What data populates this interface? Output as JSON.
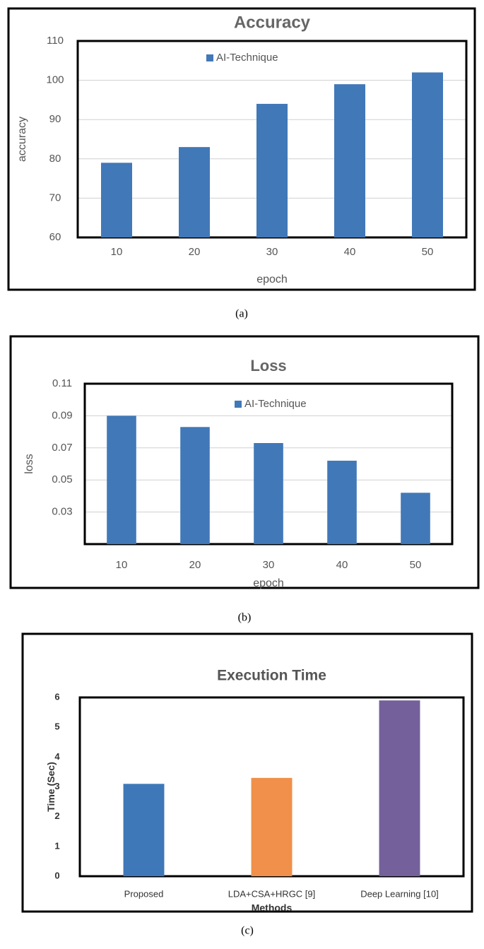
{
  "chart_data": [
    {
      "type": "bar",
      "title": "Accuracy",
      "caption": "(a)",
      "x_label": "epoch",
      "y_label": "accuracy",
      "categories": [
        "10",
        "20",
        "30",
        "40",
        "50"
      ],
      "series": [
        {
          "name": "AI-Technique",
          "color": "#4178b8",
          "values": [
            79,
            83,
            94,
            99,
            102
          ]
        }
      ],
      "ylim": [
        60,
        110
      ],
      "yticks": [
        60,
        70,
        80,
        90,
        100,
        110
      ],
      "grid": true,
      "legend": "top"
    },
    {
      "type": "bar",
      "title": "Loss",
      "caption": "(b)",
      "x_label": "epoch",
      "y_label": "loss",
      "categories": [
        "10",
        "20",
        "30",
        "40",
        "50"
      ],
      "series": [
        {
          "name": "AI-Technique",
          "color": "#4178b8",
          "values": [
            0.09,
            0.083,
            0.073,
            0.062,
            0.042
          ]
        }
      ],
      "ylim": [
        0.01,
        0.11
      ],
      "yticks": [
        0.03,
        0.05,
        0.07,
        0.09,
        0.11
      ],
      "grid": true,
      "legend": "top"
    },
    {
      "type": "bar",
      "title": "Execution Time",
      "caption": "(c)",
      "x_label": "Methods",
      "y_label": "Time (Sec)",
      "categories": [
        "Proposed",
        "LDA+CSA+HRGC [9]",
        "Deep Learning [10]"
      ],
      "values": [
        3.1,
        3.3,
        5.9
      ],
      "colors": [
        "#3f78b8",
        "#f0904a",
        "#74609a"
      ],
      "ylim": [
        0,
        6
      ],
      "yticks": [
        0,
        1,
        2,
        3,
        4,
        5,
        6
      ],
      "grid": false
    }
  ]
}
